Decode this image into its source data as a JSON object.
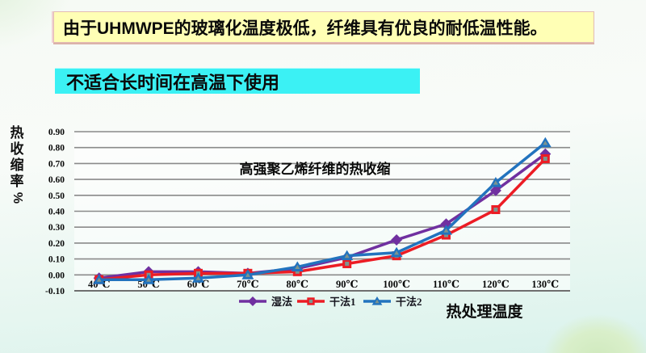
{
  "slide": {
    "top_banner": "由于UHMWPE的玻璃化温度极低，纤维具有优良的耐低温性能。",
    "sub_banner": "不适合长时间在高温下使用"
  },
  "colors": {
    "top_banner_bg": "#FFFFB5",
    "sub_banner_bg": "#3BF1F4",
    "text": "#0A0A0A",
    "gridline": "#8A8A8A",
    "axis_line": "#6F6F6F",
    "marker_center": "#7E948E",
    "plot_bg": "rgba(255,255,255,0.55)"
  },
  "chart_data": {
    "type": "line",
    "title": "高强聚乙烯纤维的热收缩",
    "xlabel": "热处理温度",
    "ylabel": "热收缩率%",
    "categories": [
      "40℃",
      "50℃",
      "60℃",
      "70℃",
      "80℃",
      "90℃",
      "100℃",
      "110℃",
      "120℃",
      "130℃"
    ],
    "series": [
      {
        "name": "湿法",
        "marker": "diamond",
        "color": "#7030A0",
        "values": [
          -0.02,
          0.02,
          0.02,
          0.01,
          0.04,
          0.11,
          0.22,
          0.32,
          0.53,
          0.76
        ]
      },
      {
        "name": "干法1",
        "marker": "square",
        "color": "#EC1C24",
        "values": [
          -0.03,
          0.0,
          0.01,
          0.01,
          0.02,
          0.07,
          0.12,
          0.25,
          0.41,
          0.73
        ]
      },
      {
        "name": "干法2",
        "marker": "triangle",
        "color": "#2273BE",
        "values": [
          -0.03,
          -0.03,
          -0.02,
          0.0,
          0.05,
          0.12,
          0.14,
          0.28,
          0.58,
          0.83
        ]
      }
    ],
    "ylim": [
      -0.1,
      0.9
    ],
    "ytick_step": 0.1,
    "grid": true,
    "legend_position": "bottom"
  }
}
